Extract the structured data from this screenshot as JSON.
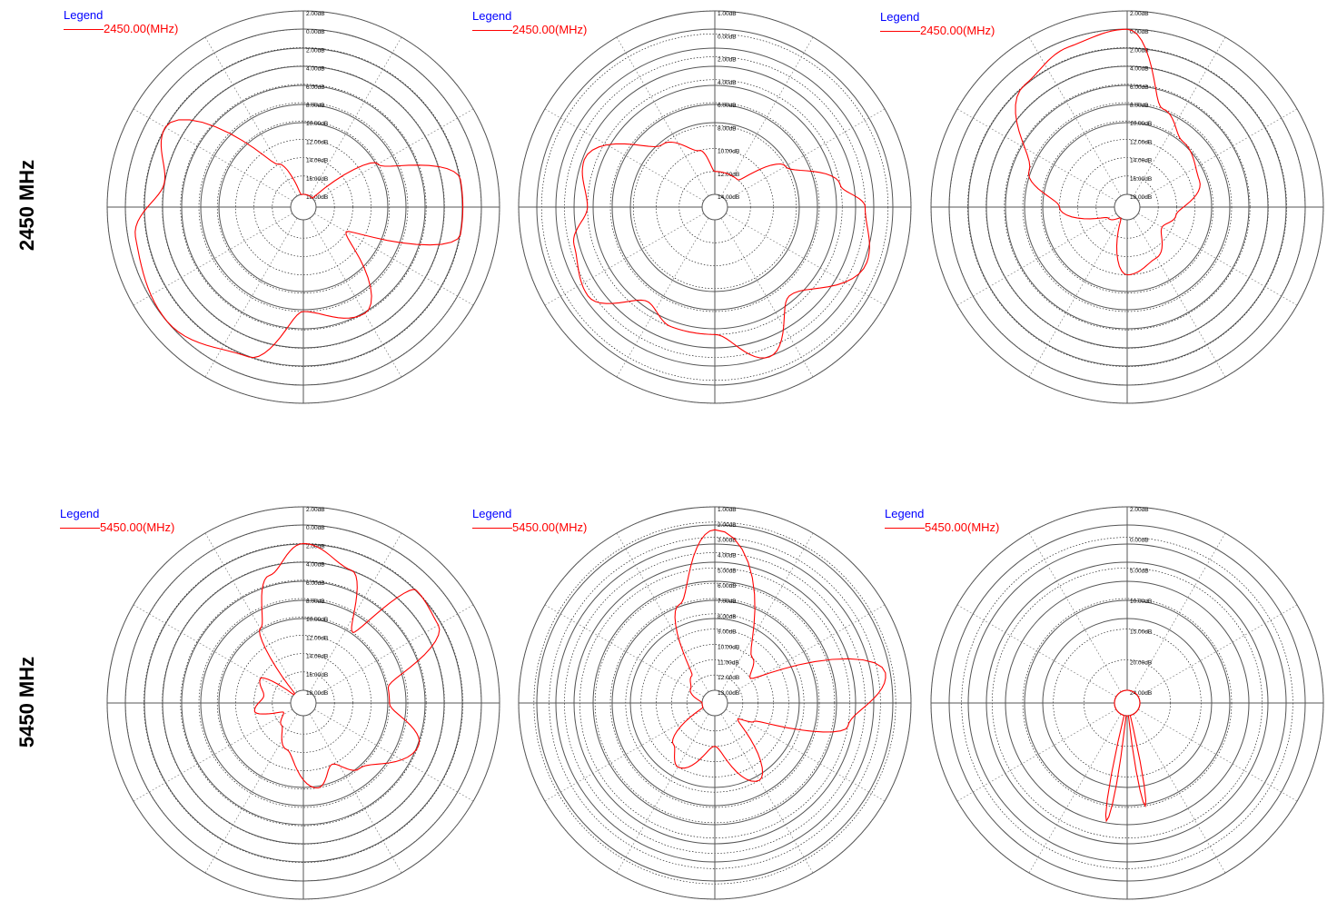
{
  "row_labels": [
    "2450 MHz",
    "5450 MHz"
  ],
  "colors": {
    "trace": "#ff0000",
    "legend_title": "#0000ff",
    "grid": "#000000"
  },
  "chart_data": [
    {
      "type": "polar",
      "legend_title": "Legend",
      "series": [
        {
          "name": "2450.00(MHz)"
        }
      ],
      "radial_ticks": [
        "2.00dB",
        "0.00dB",
        "2.00dB",
        "4.00dB",
        "6.00dB",
        "8.00dB",
        "10.00dB",
        "12.00dB",
        "14.00dB",
        "16.00dB",
        "18.00dB"
      ],
      "trace": [
        [
          0,
          9
        ],
        [
          20,
          10
        ],
        [
          40,
          10
        ],
        [
          60,
          5
        ],
        [
          80,
          1
        ],
        [
          100,
          1
        ],
        [
          120,
          7
        ],
        [
          150,
          3
        ],
        [
          180,
          4
        ],
        [
          200,
          1
        ],
        [
          230,
          0
        ],
        [
          260,
          0.4
        ],
        [
          280,
          2
        ],
        [
          300,
          1
        ],
        [
          330,
          7
        ],
        [
          350,
          9
        ],
        [
          360,
          9
        ]
      ]
    },
    {
      "type": "polar",
      "legend_title": "Legend",
      "series": [
        {
          "name": "2450.00(MHz)"
        }
      ],
      "radial_ticks": [
        "1.00dB",
        "0.00dB",
        "2.00dB",
        "4.00dB",
        "6.00dB",
        "8.00dB",
        "10.00dB",
        "12.00dB",
        "14.00dB"
      ],
      "trace": [
        [
          0,
          6
        ],
        [
          20,
          6
        ],
        [
          40,
          6
        ],
        [
          60,
          4
        ],
        [
          80,
          2
        ],
        [
          90,
          1
        ],
        [
          110,
          0.5
        ],
        [
          140,
          2.5
        ],
        [
          160,
          0.6
        ],
        [
          180,
          2
        ],
        [
          200,
          2
        ],
        [
          215,
          2.5
        ],
        [
          235,
          0.8
        ],
        [
          255,
          1.2
        ],
        [
          270,
          2
        ],
        [
          290,
          1.5
        ],
        [
          320,
          4
        ],
        [
          345,
          5
        ],
        [
          360,
          6
        ]
      ]
    },
    {
      "type": "polar",
      "legend_title": "Legend",
      "series": [
        {
          "name": "2450.00(MHz)"
        }
      ],
      "radial_ticks": [
        "2.00dB",
        "0.00dB",
        "2.00dB",
        "4.00dB",
        "6.00dB",
        "8.00dB",
        "10.00dB",
        "12.00dB",
        "14.00dB",
        "16.00dB",
        "18.00dB"
      ],
      "trace": [
        [
          0,
          0
        ],
        [
          20,
          4
        ],
        [
          40,
          5
        ],
        [
          70,
          5.5
        ],
        [
          100,
          7
        ],
        [
          120,
          7.5
        ],
        [
          150,
          6.5
        ],
        [
          180,
          6
        ],
        [
          210,
          9
        ],
        [
          240,
          8.5
        ],
        [
          270,
          6
        ],
        [
          290,
          4
        ],
        [
          320,
          1
        ],
        [
          340,
          0.4
        ],
        [
          360,
          0
        ]
      ]
    },
    {
      "type": "polar",
      "legend_title": "Legend",
      "series": [
        {
          "name": "5450.00(MHz)"
        }
      ],
      "radial_ticks": [
        "2.00dB",
        "0.00dB",
        "2.00dB",
        "4.00dB",
        "6.00dB",
        "8.00dB",
        "10.00dB",
        "12.00dB",
        "14.00dB",
        "16.00dB",
        "18.00dB"
      ],
      "trace": [
        [
          0,
          1
        ],
        [
          20,
          2
        ],
        [
          35,
          5
        ],
        [
          45,
          1
        ],
        [
          60,
          1.2
        ],
        [
          80,
          5
        ],
        [
          90,
          5
        ],
        [
          110,
          3
        ],
        [
          140,
          5
        ],
        [
          155,
          6
        ],
        [
          170,
          5
        ],
        [
          200,
          7
        ],
        [
          225,
          8
        ],
        [
          245,
          8.5
        ],
        [
          260,
          7
        ],
        [
          280,
          7.5
        ],
        [
          300,
          7
        ],
        [
          315,
          9.5
        ],
        [
          330,
          5
        ],
        [
          345,
          2.5
        ],
        [
          360,
          1
        ]
      ]
    },
    {
      "type": "polar",
      "legend_title": "Legend",
      "series": [
        {
          "name": "5450.00(MHz)"
        }
      ],
      "radial_ticks": [
        "1.00dB",
        "2.00dB",
        "3.00dB",
        "4.00dB",
        "5.00dB",
        "6.00dB",
        "7.00dB",
        "8.00dB",
        "9.00dB",
        "10.00dB",
        "11.00dB",
        "12.00dB",
        "13.00dB"
      ],
      "trace": [
        [
          0,
          0.5
        ],
        [
          40,
          8
        ],
        [
          55,
          9
        ],
        [
          80,
          0.5
        ],
        [
          100,
          3
        ],
        [
          115,
          9
        ],
        [
          125,
          10
        ],
        [
          150,
          6
        ],
        [
          180,
          9
        ],
        [
          210,
          7
        ],
        [
          225,
          8
        ],
        [
          250,
          11
        ],
        [
          270,
          11
        ],
        [
          300,
          10
        ],
        [
          320,
          9.5
        ],
        [
          340,
          5
        ],
        [
          360,
          0.5
        ]
      ]
    },
    {
      "type": "polar",
      "legend_title": "Legend",
      "series": [
        {
          "name": "5450.00(MHz)"
        }
      ],
      "radial_ticks": [
        "2.00dB",
        "0.00dB",
        "5.00dB",
        "10.00dB",
        "15.00dB",
        "20.00dB",
        "24.00dB"
      ],
      "trace": [
        [
          0,
          11
        ],
        [
          15,
          12
        ],
        [
          30,
          11
        ],
        [
          45,
          12
        ],
        [
          60,
          11
        ],
        [
          75,
          12
        ],
        [
          90,
          11.5
        ],
        [
          105,
          12
        ],
        [
          120,
          11
        ],
        [
          135,
          12
        ],
        [
          150,
          11
        ],
        [
          160,
          12
        ],
        [
          170,
          2
        ],
        [
          180,
          10
        ],
        [
          190,
          1.5
        ],
        [
          200,
          12
        ],
        [
          215,
          11
        ],
        [
          240,
          12
        ],
        [
          270,
          12
        ],
        [
          290,
          13
        ],
        [
          310,
          12
        ],
        [
          330,
          11
        ],
        [
          345,
          12
        ],
        [
          360,
          11
        ]
      ]
    }
  ]
}
